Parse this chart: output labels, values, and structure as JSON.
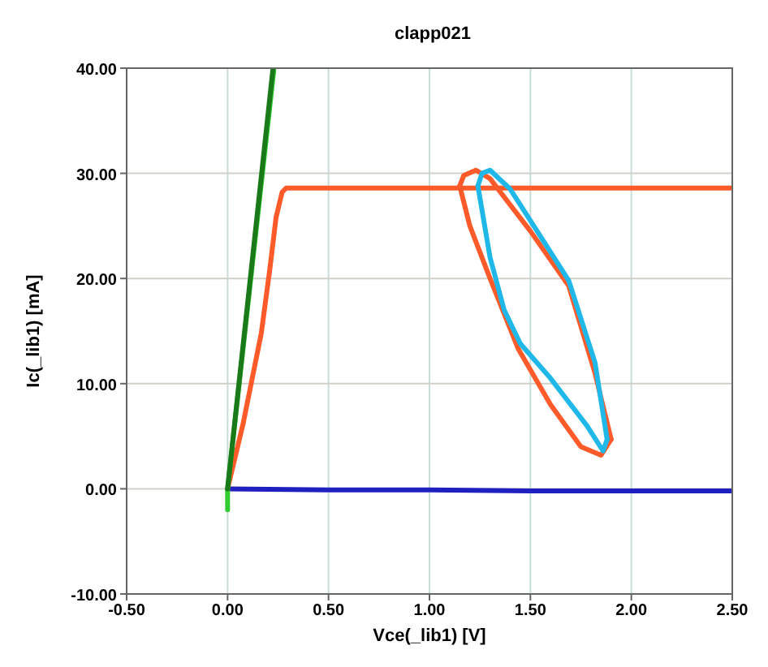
{
  "chart_data": {
    "type": "line",
    "title": "clapp021",
    "xlabel": "Vce(_lib1) [V]",
    "ylabel": "Ic(_lib1) [mA]",
    "xlim": [
      -0.5,
      2.5
    ],
    "ylim": [
      -10,
      40
    ],
    "xticks": [
      {
        "value": -0.5,
        "label": "-0.50"
      },
      {
        "value": 0,
        "label": "0.00"
      },
      {
        "value": 0.5,
        "label": "0.50"
      },
      {
        "value": 1,
        "label": "1.00"
      },
      {
        "value": 1.5,
        "label": "1.50"
      },
      {
        "value": 2,
        "label": "2.00"
      },
      {
        "value": 2.5,
        "label": "2.50"
      }
    ],
    "yticks": [
      {
        "value": -10,
        "label": "-10.00"
      },
      {
        "value": 0,
        "label": "0.00"
      },
      {
        "value": 10,
        "label": "10.00"
      },
      {
        "value": 20,
        "label": "20.00"
      },
      {
        "value": 30,
        "label": "30.00"
      },
      {
        "value": 40,
        "label": "40.00"
      }
    ],
    "grid": true,
    "marker": "none",
    "line_style": "solid",
    "series": [
      {
        "color": "#2020c0",
        "x": [
          0,
          0.5,
          1,
          1.5,
          2,
          2.5
        ],
        "values": [
          0,
          -0.1,
          -0.1,
          -0.2,
          -0.2,
          -0.2
        ]
      },
      {
        "color": "#ff5a2a",
        "x": [
          0,
          0.077,
          0.167,
          0.21,
          0.24,
          0.27,
          0.29,
          1,
          2.5
        ],
        "values": [
          0,
          6.2,
          14.8,
          21,
          25.8,
          28.2,
          28.6,
          28.6,
          28.6
        ]
      },
      {
        "color": "#ff5a2a",
        "x": [
          1.15,
          1.17,
          1.23,
          1.3,
          1.5,
          1.69,
          1.82,
          1.9
        ],
        "values": [
          28.8,
          29.8,
          30.3,
          29.5,
          24.5,
          19.3,
          11,
          4.7
        ]
      },
      {
        "color": "#ff5a2a",
        "x": [
          1.9,
          1.85,
          1.75,
          1.6,
          1.44,
          1.3,
          1.2,
          1.15
        ],
        "values": [
          4.7,
          3.2,
          4,
          8,
          13.3,
          20,
          25,
          28.8
        ]
      },
      {
        "color": "#20b8e8",
        "x": [
          1.24,
          1.26,
          1.3,
          1.4,
          1.55,
          1.69,
          1.82,
          1.88
        ],
        "values": [
          28.8,
          30,
          30.3,
          28.5,
          24,
          19.8,
          12,
          4.7
        ]
      },
      {
        "color": "#20b8e8",
        "x": [
          1.88,
          1.86,
          1.78,
          1.6,
          1.45,
          1.37,
          1.3,
          1.24
        ],
        "values": [
          4.7,
          3.6,
          6,
          10.5,
          13.8,
          17,
          22,
          28.8
        ]
      },
      {
        "color": "#30cc30",
        "x": [
          0,
          0,
          0.23
        ],
        "values": [
          -2,
          0,
          40
        ]
      },
      {
        "color": "#1a7a1a",
        "x": [
          0,
          0.225
        ],
        "values": [
          0,
          40
        ]
      }
    ]
  }
}
